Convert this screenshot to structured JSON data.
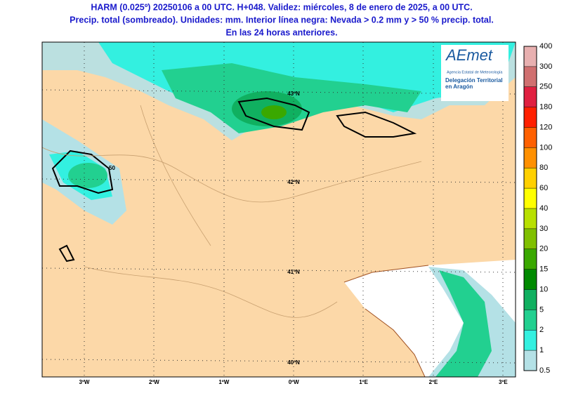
{
  "title": {
    "line1": "HARM (0.025º) 20250106 a 00 UTC. H+048. Validez: miércoles, 8 de enero de 2025, a 00 UTC.",
    "line2": "Precip. total (sombreado). Unidades: mm. Interior línea negra: Nevada > 0.2 mm y > 50 % precip. total.",
    "line3": "En las 24 horas anteriores."
  },
  "map": {
    "lon_labels": [
      "3ºW",
      "2ºW",
      "1ºW",
      "0ºW",
      "1ºE",
      "2ºE",
      "3ºE"
    ],
    "lat_labels": [
      "43ºN",
      "42ºN",
      "41ºN",
      "40ºN"
    ],
    "contour_label": "50"
  },
  "logo": {
    "name": "AEmet",
    "agency": "Agencia Estatal de Meteorología",
    "delegation": "Delegación Territorial en Aragón"
  },
  "colorbar": {
    "levels": [
      0.5,
      1,
      2,
      5,
      10,
      15,
      20,
      30,
      40,
      60,
      80,
      100,
      120,
      180,
      250,
      300,
      400
    ],
    "colors": [
      "#b4e1e6",
      "#33f0e0",
      "#22d090",
      "#10b060",
      "#008a00",
      "#3aa800",
      "#80c000",
      "#b8e000",
      "#ffff00",
      "#ffd000",
      "#ff9000",
      "#ff6000",
      "#ff2000",
      "#e02040",
      "#d07070",
      "#e8b0b0"
    ]
  }
}
